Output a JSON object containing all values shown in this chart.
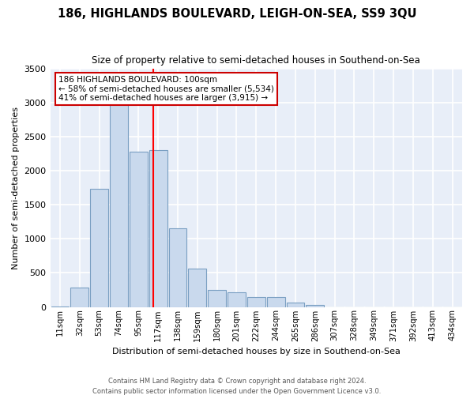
{
  "title": "186, HIGHLANDS BOULEVARD, LEIGH-ON-SEA, SS9 3QU",
  "subtitle": "Size of property relative to semi-detached houses in Southend-on-Sea",
  "xlabel": "Distribution of semi-detached houses by size in Southend-on-Sea",
  "ylabel": "Number of semi-detached properties",
  "annotation_title": "186 HIGHLANDS BOULEVARD: 100sqm",
  "annotation_line1": "← 58% of semi-detached houses are smaller (5,534)",
  "annotation_line2": "41% of semi-detached houses are larger (3,915) →",
  "footer1": "Contains HM Land Registry data © Crown copyright and database right 2024.",
  "footer2": "Contains public sector information licensed under the Open Government Licence v3.0.",
  "bar_color": "#c9d9ed",
  "bar_edge_color": "#7a9fc2",
  "vline_color": "red",
  "background_color": "#e8eef8",
  "grid_color": "#ffffff",
  "annotation_box_color": "#ffffff",
  "annotation_box_edge": "#cc0000",
  "categories": [
    "11sqm",
    "32sqm",
    "53sqm",
    "74sqm",
    "95sqm",
    "117sqm",
    "138sqm",
    "159sqm",
    "180sqm",
    "201sqm",
    "222sqm",
    "244sqm",
    "265sqm",
    "286sqm",
    "307sqm",
    "328sqm",
    "349sqm",
    "371sqm",
    "392sqm",
    "413sqm",
    "434sqm"
  ],
  "values": [
    10,
    290,
    1730,
    3050,
    2280,
    2300,
    1150,
    560,
    250,
    210,
    150,
    140,
    60,
    30,
    0,
    0,
    0,
    0,
    0,
    0,
    0
  ],
  "ylim": [
    0,
    3500
  ],
  "yticks": [
    0,
    500,
    1000,
    1500,
    2000,
    2500,
    3000,
    3500
  ],
  "vline_position": 4.75,
  "fig_width": 6.0,
  "fig_height": 5.0,
  "fig_dpi": 100
}
